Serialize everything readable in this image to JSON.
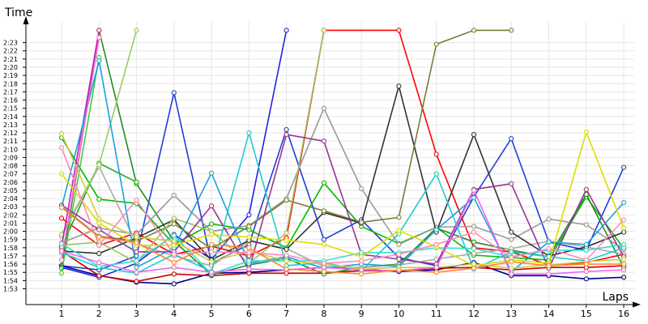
{
  "chart_data": {
    "type": "line",
    "ylabel": "Time",
    "xlabel": "Laps",
    "x": [
      1,
      2,
      3,
      4,
      5,
      6,
      7,
      8,
      9,
      10,
      11,
      12,
      13,
      14,
      15,
      16
    ],
    "xticks": [
      "1",
      "2",
      "3",
      "4",
      "5",
      "6",
      "7",
      "8",
      "9",
      "10",
      "11",
      "12",
      "13",
      "14",
      "15",
      "16"
    ],
    "yticks": [
      "1:53",
      "1:54",
      "1:55",
      "1:56",
      "1:57",
      "1:58",
      "1:59",
      "2:00",
      "2:01",
      "2:02",
      "2:03",
      "2:04",
      "2:05",
      "2:06",
      "2:07",
      "2:08",
      "2:09",
      "2:10",
      "2:11",
      "2:12",
      "2:13",
      "2:14",
      "2:15",
      "2:16",
      "2:17",
      "2:18",
      "2:19",
      "2:20",
      "2:21",
      "2:22",
      "2:23"
    ],
    "ylim": [
      112,
      144.5
    ],
    "grid": true,
    "series": [
      {
        "color": "#1f3fd6",
        "values": [
          115.8,
          115.3,
          117.0,
          136.9,
          116.1,
          118.4,
          132.4,
          119.0,
          121.4,
          116.8,
          115.8,
          124.2,
          131.3,
          118.7,
          117.7,
          127.8
        ]
      },
      {
        "color": "#00008b",
        "values": [
          115.8,
          114.6,
          113.8,
          113.6,
          114.9,
          115.0,
          115.3,
          115.6,
          115.4,
          115.1,
          115.3,
          116.2,
          114.6,
          114.6,
          114.2,
          114.4
        ]
      },
      {
        "color": "#2222dd",
        "values": [
          115.6,
          114.4,
          116.1,
          119.6,
          116.6,
          122.0,
          144.5,
          null,
          null,
          null,
          null,
          null,
          null,
          null,
          null,
          null
        ]
      },
      {
        "color": "#ff0000",
        "values": [
          121.6,
          118.3,
          119.8,
          117.2,
          118.2,
          117.0,
          119.2,
          144.5,
          null,
          144.5,
          129.4,
          118.0,
          117.5,
          115.9,
          116.2,
          117.2
        ]
      },
      {
        "color": "#cc0000",
        "values": [
          117.6,
          114.6,
          113.9,
          114.8,
          114.6,
          114.9,
          114.9,
          114.9,
          115.2,
          115.2,
          115.5,
          115.6,
          115.3,
          115.6,
          115.6,
          115.8
        ]
      },
      {
        "color": "#00bb00",
        "values": [
          131.4,
          123.9,
          123.4,
          118.4,
          120.9,
          120.2,
          118.0,
          125.9,
          120.6,
          118.5,
          120.5,
          117.1,
          116.8,
          116.5,
          124.2,
          117.9
        ]
      },
      {
        "color": "#228b22",
        "values": [
          115.5,
          144.5,
          125.8,
          118.8,
          114.7,
          115.9,
          116.7,
          114.8,
          115.6,
          116.0,
          120.4,
          118.7,
          117.7,
          116.9,
          124.5,
          115.6
        ]
      },
      {
        "color": "#1fa81f",
        "values": [
          118.0,
          128.3,
          126.0,
          null,
          null,
          null,
          null,
          null,
          null,
          null,
          null,
          null,
          null,
          null,
          null,
          null
        ]
      },
      {
        "color": "#44cc44",
        "values": [
          114.9,
          141.2,
          null,
          null,
          null,
          null,
          null,
          null,
          null,
          null,
          null,
          null,
          null,
          null,
          null,
          null
        ]
      },
      {
        "color": "#999999",
        "values": [
          118.6,
          120.4,
          119.6,
          124.4,
          120.0,
          120.7,
          124.0,
          135.0,
          125.2,
          118.4,
          120.5,
          120.6,
          119.0,
          121.5,
          120.8,
          117.8
        ]
      },
      {
        "color": "#aaaaaa",
        "values": [
          119.4,
          127.9,
          118.5,
          117.0,
          115.8,
          118.8,
          117.9,
          115.7,
          115.6,
          115.9,
          116.6,
          117.3,
          117.9,
          118.8,
          118.1,
          117.2
        ]
      },
      {
        "color": "#333333",
        "values": [
          117.6,
          117.3,
          119.2,
          121.4,
          116.5,
          118.9,
          117.8,
          122.3,
          121.0,
          137.7,
          119.9,
          131.8,
          119.9,
          117.0,
          118.1,
          119.9
        ]
      },
      {
        "color": "#7a7a3a",
        "values": [
          123.0,
          119.4,
          118.8,
          120.9,
          117.9,
          120.6,
          123.8,
          122.5,
          121.1,
          121.7,
          142.8,
          144.5,
          144.5,
          null,
          null,
          null
        ]
      },
      {
        "color": "#99cc66",
        "values": [
          119.6,
          128.1,
          144.5,
          null,
          null,
          null,
          null,
          null,
          null,
          null,
          null,
          null,
          null,
          null,
          null,
          null
        ]
      },
      {
        "color": "#a0c060",
        "values": [
          118.3,
          118.7,
          116.2,
          121.6,
          120.0,
          116.1,
          119.8,
          144.5,
          null,
          null,
          null,
          null,
          null,
          null,
          null,
          null
        ]
      },
      {
        "color": "#993399",
        "values": [
          123.2,
          120.2,
          117.5,
          117.5,
          123.1,
          115.3,
          131.8,
          131.0,
          117.2,
          116.6,
          116.0,
          125.1,
          125.8,
          115.5,
          125.1,
          116.9
        ]
      },
      {
        "color": "#bb22bb",
        "values": [
          118.1,
          144.5,
          null,
          null,
          null,
          null,
          null,
          null,
          null,
          null,
          null,
          null,
          null,
          null,
          null,
          null
        ]
      },
      {
        "color": "#22cccc",
        "values": [
          117.4,
          115.6,
          114.9,
          117.2,
          115.1,
          132.0,
          115.8,
          116.2,
          115.2,
          119.7,
          127.0,
          115.4,
          117.5,
          116.9,
          116.4,
          118.0
        ]
      },
      {
        "color": "#1a9fe0",
        "values": [
          122.9,
          140.8,
          115.6,
          118.0,
          127.1,
          116.1,
          116.9,
          115.5,
          116.0,
          115.7,
          120.2,
          124.1,
          115.1,
          118.7,
          118.4,
          123.5
        ]
      },
      {
        "color": "#33dddd",
        "values": [
          118.5,
          115.7,
          116.4,
          119.5,
          114.8,
          116.4,
          116.4,
          116.4,
          117.4,
          117.4,
          118.0,
          117.9,
          116.9,
          117.7,
          117.7,
          118.4
        ]
      },
      {
        "color": "#dddd00",
        "values": [
          127.0,
          121.0,
          118.3,
          118.3,
          119.6,
          119.3,
          118.9,
          118.4,
          116.9,
          120.1,
          118.1,
          115.8,
          116.5,
          116.1,
          132.1,
          120.4
        ]
      },
      {
        "color": "#cccc44",
        "values": [
          131.9,
          121.5,
          119.3,
          118.8,
          116.3,
          117.6,
          116.4,
          116.0,
          115.4,
          115.6,
          115.6,
          116.0,
          115.5,
          115.9,
          116.3,
          116.6
        ]
      },
      {
        "color": "#ff88bb",
        "values": [
          130.2,
          118.3,
          123.8,
          117.2,
          117.5,
          117.4,
          117.1,
          116.1,
          116.4,
          117.2,
          118.4,
          119.9,
          116.8,
          117.9,
          116.5,
          121.4
        ]
      },
      {
        "color": "#ff66cc",
        "values": [
          116.5,
          143.6,
          null,
          null,
          null,
          null,
          null,
          null,
          null,
          null,
          null,
          null,
          null,
          null,
          null,
          null
        ]
      },
      {
        "color": "#ee66ee",
        "values": [
          117.6,
          116.2,
          115.0,
          115.6,
          115.0,
          115.4,
          115.3,
          115.6,
          115.3,
          115.2,
          115.6,
          125.0,
          114.8,
          114.8,
          115.1,
          115.3
        ]
      },
      {
        "color": "#ff8833",
        "values": [
          122.9,
          119.3,
          118.6,
          116.2,
          118.4,
          118.0,
          115.4,
          115.1,
          114.8,
          115.3,
          115.0,
          115.5,
          116.3,
          115.8,
          116.0,
          116.0
        ]
      }
    ]
  }
}
